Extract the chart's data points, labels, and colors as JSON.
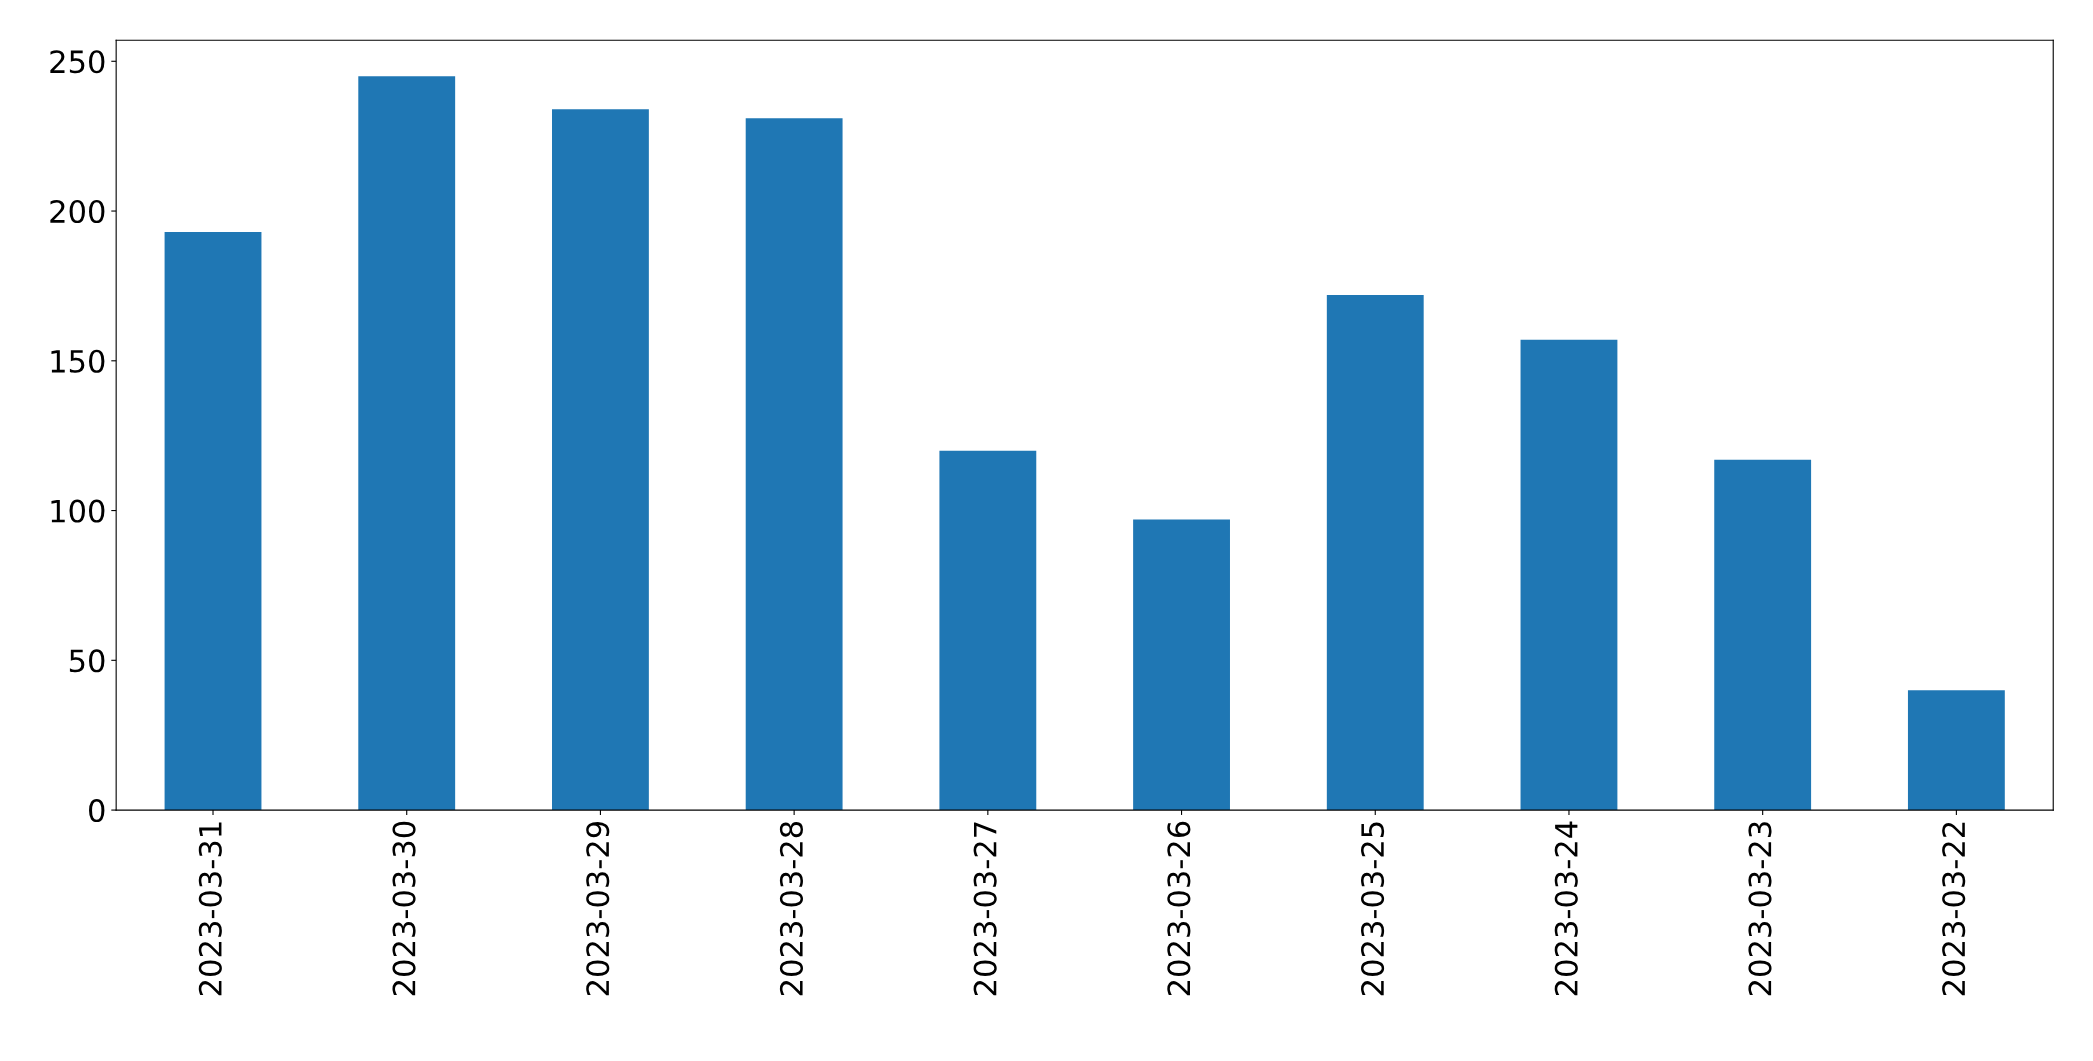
{
  "chart_data": {
    "type": "bar",
    "categories": [
      "2023-03-31",
      "2023-03-30",
      "2023-03-29",
      "2023-03-28",
      "2023-03-27",
      "2023-03-26",
      "2023-03-25",
      "2023-03-24",
      "2023-03-23",
      "2023-03-22"
    ],
    "values": [
      193,
      245,
      234,
      231,
      120,
      97,
      172,
      157,
      117,
      40
    ],
    "color": "#1f77b4",
    "ylim": [
      0,
      257
    ],
    "yticks": [
      0,
      50,
      100,
      150,
      200,
      250
    ],
    "grid": false,
    "legend": false
  }
}
